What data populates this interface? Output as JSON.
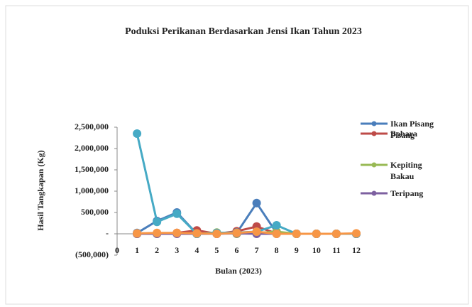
{
  "chart_data": {
    "type": "line",
    "title": "Poduksi Perikanan Berdasarkan Jensi Ikan Tahun 2023",
    "x_label": "Bulan (2023)",
    "y_label": "Hasil Tangkapan (Kg)",
    "x": [
      1,
      2,
      3,
      4,
      5,
      6,
      7,
      8,
      9,
      10,
      11,
      12
    ],
    "series": [
      {
        "name": "Ikan Pisang Pisang",
        "color": "#4a7ebb",
        "values": [
          20000,
          300000,
          500000,
          0,
          10000,
          20000,
          720000,
          20000,
          0,
          0,
          0,
          0
        ]
      },
      {
        "name": "Bobara",
        "color": "#be4b48",
        "values": [
          0,
          10000,
          20000,
          80000,
          0,
          60000,
          170000,
          10000,
          0,
          0,
          0,
          0
        ]
      },
      {
        "name": "Kepiting Bakau",
        "color": "#98b954",
        "values": [
          0,
          0,
          10000,
          0,
          30000,
          0,
          20000,
          50000,
          0,
          0,
          0,
          0
        ]
      },
      {
        "name": "Teripang",
        "color": "#7d60a0",
        "values": [
          0,
          0,
          0,
          0,
          0,
          10000,
          0,
          0,
          0,
          0,
          0,
          0
        ]
      },
      {
        "color": "#46aac5",
        "values": [
          2350000,
          280000,
          470000,
          0,
          20000,
          30000,
          50000,
          200000,
          0,
          0,
          0,
          0
        ]
      },
      {
        "color": "#f79646",
        "values": [
          10000,
          20000,
          20000,
          10000,
          0,
          20000,
          50000,
          0,
          0,
          0,
          0,
          10000
        ]
      }
    ],
    "xlim": [
      0,
      12
    ],
    "xticks": [
      0,
      1,
      2,
      3,
      4,
      5,
      6,
      7,
      8,
      9,
      10,
      11,
      12
    ],
    "ylim": [
      -500000,
      2500000
    ],
    "yticks": [
      {
        "value": -500000,
        "label": "(500,000)"
      },
      {
        "value": 0,
        "label": "-"
      },
      {
        "value": 500000,
        "label": "500,000"
      },
      {
        "value": 1000000,
        "label": "1,000,000"
      },
      {
        "value": 1500000,
        "label": "1,500,000"
      },
      {
        "value": 2000000,
        "label": "2,000,000"
      },
      {
        "value": 2500000,
        "label": "2,500,000"
      }
    ],
    "legend": "right"
  }
}
